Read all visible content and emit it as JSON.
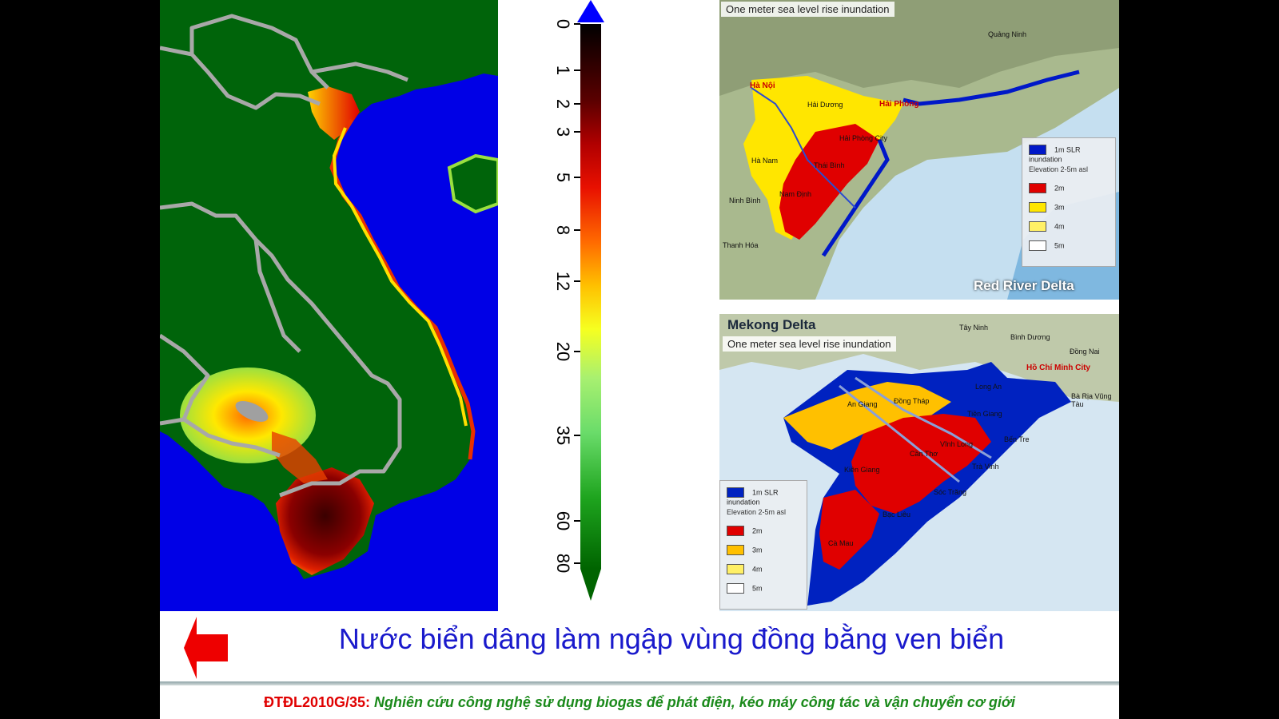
{
  "scale": {
    "ticks": [
      "0",
      "1",
      "2",
      "3",
      "5",
      "8",
      "12",
      "20",
      "35",
      "60",
      "80"
    ]
  },
  "red_river": {
    "caption": "One meter sea level rise inundation",
    "region_label": "Red River Delta",
    "places": [
      "Quảng Ninh",
      "Hà Nội",
      "Hải Dương",
      "Hải Phòng",
      "Hải Phòng City",
      "Hà Nam",
      "Thái Bình",
      "Nam Định",
      "Ninh Bình",
      "Thanh Hóa"
    ],
    "legend": {
      "inundation": "1m SLR inundation",
      "elevation_title": "Elevation 2-5m asl",
      "levels": [
        "2m",
        "3m",
        "4m",
        "5m"
      ]
    }
  },
  "mekong": {
    "region_label": "Mekong Delta",
    "caption": "One meter sea level rise inundation",
    "places": [
      "Tây Ninh",
      "Bình Dương",
      "Đồng Nai",
      "Hồ Chí Minh City",
      "Long An",
      "Bà Rịa Vũng Tàu",
      "An Giang",
      "Đồng Tháp",
      "Tiền Giang",
      "Bến Tre",
      "Vĩnh Long",
      "Cần Thơ",
      "Trà Vinh",
      "Kiên Giang",
      "Sóc Trăng",
      "Bạc Liêu",
      "Cà Mau"
    ],
    "legend": {
      "inundation": "1m SLR inundation",
      "elevation_title": "Elevation 2-5m asl",
      "levels": [
        "2m",
        "3m",
        "4m",
        "5m"
      ]
    }
  },
  "title": "Nước biển dâng làm ngập vùng đồng bằng ven biển",
  "footer": {
    "code": "ĐTĐL2010G/35",
    "separator": ": ",
    "description": "Nghiên cứu công nghệ sử dụng biogas để phát điện, kéo máy công tác và vận chuyển cơ giới"
  },
  "colors": {
    "sea": "#0000e6",
    "land": "#00640a",
    "lowland": "#8b0000",
    "title_blue": "#1a1acc",
    "footer_red": "#e00000",
    "footer_green": "#1b8a1b"
  }
}
